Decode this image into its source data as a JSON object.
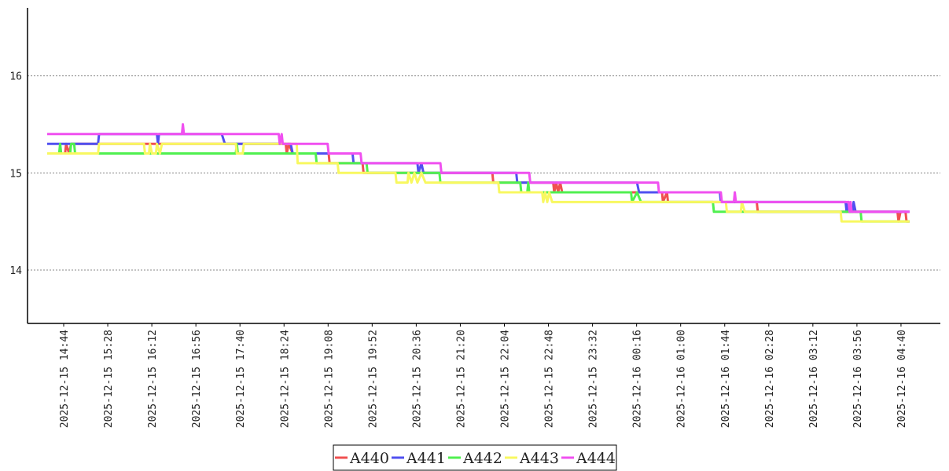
{
  "chart_data": {
    "type": "line",
    "title": "",
    "xlabel": "",
    "ylabel": "",
    "ylim": [
      13.45,
      16.7
    ],
    "yticks": [
      14,
      15,
      16
    ],
    "grid": "horizontal dotted",
    "legend_position": "bottom-center",
    "x_tick_labels": [
      "2025-12-15 14:44",
      "2025-12-15 15:28",
      "2025-12-15 16:12",
      "2025-12-15 16:56",
      "2025-12-15 17:40",
      "2025-12-15 18:24",
      "2025-12-15 19:08",
      "2025-12-15 19:52",
      "2025-12-15 20:36",
      "2025-12-15 21:20",
      "2025-12-15 22:04",
      "2025-12-15 22:48",
      "2025-12-15 23:32",
      "2025-12-16 00:16",
      "2025-12-16 01:00",
      "2025-12-16 01:44",
      "2025-12-16 02:28",
      "2025-12-16 03:12",
      "2025-12-16 03:56",
      "2025-12-16 04:40"
    ],
    "x_range": [
      "2025-12-15 14:24",
      "2025-12-16 05:00"
    ],
    "series": [
      {
        "name": "A440",
        "color": "#f05050",
        "points": [
          [
            "2025-12-15 14:24",
            15.2
          ],
          [
            "2025-12-15 14:42",
            15.2
          ],
          [
            "2025-12-15 14:43",
            15.3
          ],
          [
            "2025-12-15 14:46",
            15.2
          ],
          [
            "2025-12-15 14:48",
            15.3
          ],
          [
            "2025-12-15 18:23",
            15.3
          ],
          [
            "2025-12-15 18:24",
            15.2
          ],
          [
            "2025-12-15 18:26",
            15.3
          ],
          [
            "2025-12-15 18:30",
            15.2
          ],
          [
            "2025-12-15 19:06",
            15.2
          ],
          [
            "2025-12-15 19:07",
            15.1
          ],
          [
            "2025-12-15 19:40",
            15.1
          ],
          [
            "2025-12-15 19:41",
            15.0
          ],
          [
            "2025-12-15 21:50",
            15.0
          ],
          [
            "2025-12-15 21:51",
            14.9
          ],
          [
            "2025-12-15 22:51",
            14.9
          ],
          [
            "2025-12-15 22:52",
            14.8
          ],
          [
            "2025-12-15 22:54",
            14.9
          ],
          [
            "2025-12-15 22:56",
            14.8
          ],
          [
            "2025-12-15 22:58",
            14.9
          ],
          [
            "2025-12-15 23:00",
            14.8
          ],
          [
            "2025-12-16 00:40",
            14.8
          ],
          [
            "2025-12-16 00:41",
            14.7
          ],
          [
            "2025-12-16 00:45",
            14.8
          ],
          [
            "2025-12-16 00:46",
            14.7
          ],
          [
            "2025-12-16 02:15",
            14.7
          ],
          [
            "2025-12-16 02:16",
            14.6
          ],
          [
            "2025-12-16 04:36",
            14.6
          ],
          [
            "2025-12-16 04:37",
            14.5
          ],
          [
            "2025-12-16 04:39",
            14.6
          ],
          [
            "2025-12-16 04:44",
            14.6
          ],
          [
            "2025-12-16 04:45",
            14.5
          ],
          [
            "2025-12-16 04:48",
            14.5
          ]
        ]
      },
      {
        "name": "A441",
        "color": "#5050f0",
        "points": [
          [
            "2025-12-15 14:24",
            15.3
          ],
          [
            "2025-12-15 15:15",
            15.3
          ],
          [
            "2025-12-15 15:16",
            15.4
          ],
          [
            "2025-12-15 16:14",
            15.4
          ],
          [
            "2025-12-15 16:15",
            15.3
          ],
          [
            "2025-12-15 16:16",
            15.4
          ],
          [
            "2025-12-15 17:19",
            15.4
          ],
          [
            "2025-12-15 17:22",
            15.3
          ],
          [
            "2025-12-15 18:28",
            15.3
          ],
          [
            "2025-12-15 18:30",
            15.2
          ],
          [
            "2025-12-15 19:30",
            15.2
          ],
          [
            "2025-12-15 19:31",
            15.1
          ],
          [
            "2025-12-15 20:35",
            15.1
          ],
          [
            "2025-12-15 20:36",
            15.0
          ],
          [
            "2025-12-15 20:39",
            15.1
          ],
          [
            "2025-12-15 20:41",
            15.0
          ],
          [
            "2025-12-15 22:14",
            15.0
          ],
          [
            "2025-12-15 22:15",
            14.9
          ],
          [
            "2025-12-15 22:46",
            14.9
          ],
          [
            "2025-12-15 22:47",
            14.9
          ],
          [
            "2025-12-15 22:50",
            14.9
          ],
          [
            "2025-12-16 00:15",
            14.9
          ],
          [
            "2025-12-16 00:17",
            14.8
          ],
          [
            "2025-12-16 01:38",
            14.8
          ],
          [
            "2025-12-16 01:39",
            14.7
          ],
          [
            "2025-12-16 03:44",
            14.7
          ],
          [
            "2025-12-16 03:45",
            14.6
          ],
          [
            "2025-12-16 03:47",
            14.7
          ],
          [
            "2025-12-16 03:48",
            14.6
          ],
          [
            "2025-12-16 03:51",
            14.6
          ],
          [
            "2025-12-16 03:52",
            14.7
          ],
          [
            "2025-12-16 03:54",
            14.6
          ],
          [
            "2025-12-16 04:48",
            14.6
          ]
        ]
      },
      {
        "name": "A442",
        "color": "#50f050",
        "points": [
          [
            "2025-12-15 14:24",
            15.2
          ],
          [
            "2025-12-15 14:36",
            15.2
          ],
          [
            "2025-12-15 14:37",
            15.3
          ],
          [
            "2025-12-15 14:38",
            15.2
          ],
          [
            "2025-12-15 14:47",
            15.2
          ],
          [
            "2025-12-15 14:48",
            15.3
          ],
          [
            "2025-12-15 14:51",
            15.3
          ],
          [
            "2025-12-15 14:52",
            15.2
          ],
          [
            "2025-12-15 17:33",
            15.2
          ],
          [
            "2025-12-15 17:34",
            15.3
          ],
          [
            "2025-12-15 17:35",
            15.2
          ],
          [
            "2025-12-15 18:53",
            15.2
          ],
          [
            "2025-12-15 18:54",
            15.1
          ],
          [
            "2025-12-15 19:44",
            15.1
          ],
          [
            "2025-12-15 19:45",
            15.0
          ],
          [
            "2025-12-15 20:57",
            15.0
          ],
          [
            "2025-12-15 20:58",
            14.9
          ],
          [
            "2025-12-15 22:18",
            14.9
          ],
          [
            "2025-12-15 22:19",
            14.8
          ],
          [
            "2025-12-15 22:25",
            14.8
          ],
          [
            "2025-12-15 22:26",
            14.9
          ],
          [
            "2025-12-15 22:27",
            14.8
          ],
          [
            "2025-12-15 23:15",
            14.8
          ],
          [
            "2025-12-16 00:09",
            14.8
          ],
          [
            "2025-12-16 00:10",
            14.7
          ],
          [
            "2025-12-16 00:15",
            14.8
          ],
          [
            "2025-12-16 00:19",
            14.7
          ],
          [
            "2025-12-16 01:31",
            14.7
          ],
          [
            "2025-12-16 01:32",
            14.6
          ],
          [
            "2025-12-16 03:59",
            14.6
          ],
          [
            "2025-12-16 04:00",
            14.5
          ],
          [
            "2025-12-16 04:48",
            14.5
          ]
        ]
      },
      {
        "name": "A443",
        "color": "#f8f860",
        "points": [
          [
            "2025-12-15 14:24",
            15.2
          ],
          [
            "2025-12-15 15:15",
            15.2
          ],
          [
            "2025-12-15 15:16",
            15.3
          ],
          [
            "2025-12-15 16:01",
            15.3
          ],
          [
            "2025-12-15 16:02",
            15.2
          ],
          [
            "2025-12-15 16:06",
            15.2
          ],
          [
            "2025-12-15 16:07",
            15.3
          ],
          [
            "2025-12-15 16:09",
            15.2
          ],
          [
            "2025-12-15 16:13",
            15.2
          ],
          [
            "2025-12-15 16:14",
            15.3
          ],
          [
            "2025-12-15 16:17",
            15.2
          ],
          [
            "2025-12-15 16:19",
            15.3
          ],
          [
            "2025-12-15 17:33",
            15.3
          ],
          [
            "2025-12-15 17:34",
            15.2
          ],
          [
            "2025-12-15 17:40",
            15.2
          ],
          [
            "2025-12-15 17:41",
            15.3
          ],
          [
            "2025-12-15 18:34",
            15.3
          ],
          [
            "2025-12-15 18:35",
            15.1
          ],
          [
            "2025-12-15 19:15",
            15.1
          ],
          [
            "2025-12-15 19:16",
            15.0
          ],
          [
            "2025-12-15 20:13",
            15.0
          ],
          [
            "2025-12-15 20:14",
            14.9
          ],
          [
            "2025-12-15 20:25",
            14.9
          ],
          [
            "2025-12-15 20:26",
            15.0
          ],
          [
            "2025-12-15 20:29",
            14.9
          ],
          [
            "2025-12-15 20:32",
            15.0
          ],
          [
            "2025-12-15 20:35",
            14.9
          ],
          [
            "2025-12-15 20:39",
            15.0
          ],
          [
            "2025-12-15 20:43",
            14.9
          ],
          [
            "2025-12-15 21:56",
            14.9
          ],
          [
            "2025-12-15 21:57",
            14.8
          ],
          [
            "2025-12-15 22:40",
            14.8
          ],
          [
            "2025-12-15 22:41",
            14.7
          ],
          [
            "2025-12-15 22:43",
            14.8
          ],
          [
            "2025-12-15 22:45",
            14.7
          ],
          [
            "2025-12-15 22:47",
            14.8
          ],
          [
            "2025-12-15 22:50",
            14.7
          ],
          [
            "2025-12-16 01:44",
            14.7
          ],
          [
            "2025-12-16 01:45",
            14.6
          ],
          [
            "2025-12-16 01:59",
            14.6
          ],
          [
            "2025-12-16 02:00",
            14.7
          ],
          [
            "2025-12-16 02:03",
            14.6
          ],
          [
            "2025-12-16 03:39",
            14.6
          ],
          [
            "2025-12-16 03:40",
            14.5
          ],
          [
            "2025-12-16 04:48",
            14.5
          ]
        ]
      },
      {
        "name": "A444",
        "color": "#f050f0",
        "points": [
          [
            "2025-12-15 14:24",
            15.4
          ],
          [
            "2025-12-15 16:39",
            15.4
          ],
          [
            "2025-12-15 16:40",
            15.5
          ],
          [
            "2025-12-15 16:41",
            15.4
          ],
          [
            "2025-12-15 18:16",
            15.4
          ],
          [
            "2025-12-15 18:17",
            15.3
          ],
          [
            "2025-12-15 18:19",
            15.4
          ],
          [
            "2025-12-15 18:20",
            15.3
          ],
          [
            "2025-12-15 19:05",
            15.3
          ],
          [
            "2025-12-15 19:06",
            15.2
          ],
          [
            "2025-12-15 19:38",
            15.2
          ],
          [
            "2025-12-15 19:39",
            15.1
          ],
          [
            "2025-12-15 20:58",
            15.1
          ],
          [
            "2025-12-15 20:59",
            15.0
          ],
          [
            "2025-12-15 22:13",
            15.0
          ],
          [
            "2025-12-15 22:27",
            15.0
          ],
          [
            "2025-12-15 22:28",
            14.9
          ],
          [
            "2025-12-16 00:36",
            14.9
          ],
          [
            "2025-12-16 00:37",
            14.8
          ],
          [
            "2025-12-16 00:51",
            14.8
          ],
          [
            "2025-12-16 01:39",
            14.8
          ],
          [
            "2025-12-16 01:40",
            14.7
          ],
          [
            "2025-12-16 01:52",
            14.7
          ],
          [
            "2025-12-16 01:53",
            14.8
          ],
          [
            "2025-12-16 01:54",
            14.7
          ],
          [
            "2025-12-16 03:47",
            14.7
          ],
          [
            "2025-12-16 03:48",
            14.6
          ],
          [
            "2025-12-16 03:49",
            14.7
          ],
          [
            "2025-12-16 03:50",
            14.6
          ],
          [
            "2025-12-16 04:48",
            14.6
          ]
        ]
      }
    ]
  }
}
